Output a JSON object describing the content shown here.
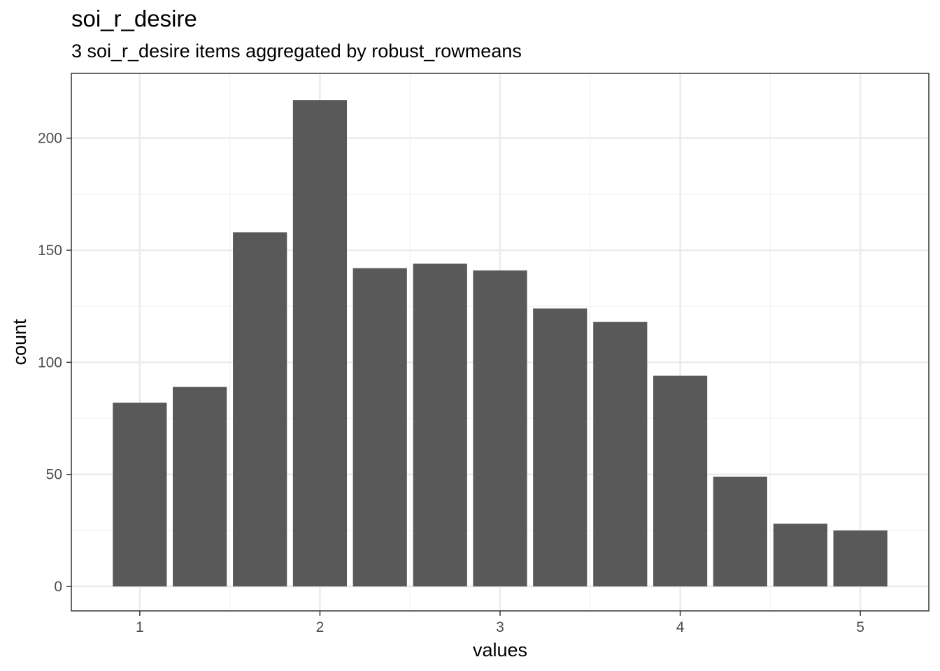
{
  "chart_data": {
    "type": "bar",
    "title": "soi_r_desire",
    "subtitle": "3 soi_r_desire items aggregated by robust_rowmeans",
    "xlabel": "values",
    "ylabel": "count",
    "x": [
      1.0,
      1.333,
      1.667,
      2.0,
      2.333,
      2.667,
      3.0,
      3.333,
      3.667,
      4.0,
      4.333,
      4.667,
      5.0
    ],
    "values": [
      82,
      89,
      158,
      217,
      142,
      144,
      141,
      124,
      118,
      94,
      49,
      28,
      25
    ],
    "xlim": [
      0.62,
      5.38
    ],
    "ylim": [
      -10.9,
      228.9
    ],
    "xticks": [
      1,
      2,
      3,
      4,
      5
    ],
    "yticks": [
      0,
      50,
      100,
      150,
      200
    ],
    "grid": true,
    "colors": {
      "bar": "#595959",
      "grid_major": "#ebebeb",
      "grid_minor": "#f2f2f2",
      "panel_border": "#333333"
    }
  }
}
